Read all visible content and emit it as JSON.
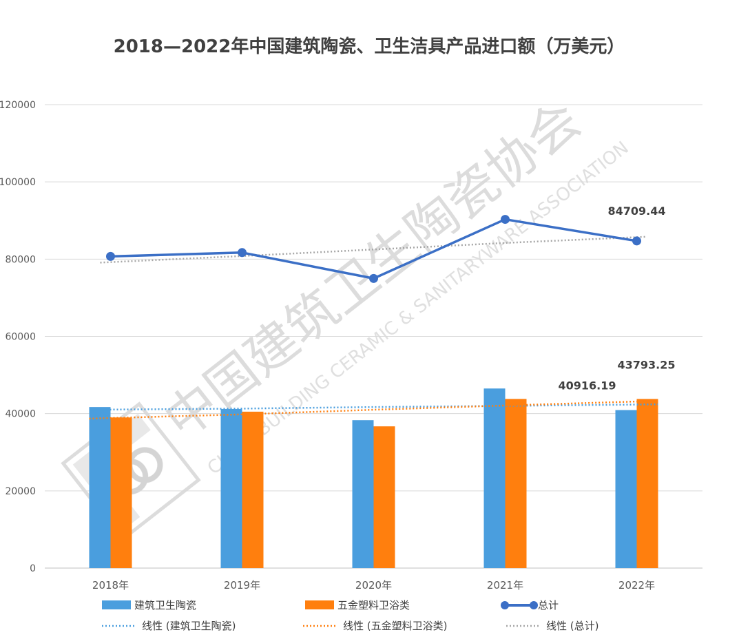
{
  "chart_data": {
    "type": "bar",
    "title": "2018—2022年中国建筑陶瓷、卫生洁具产品进口额（万美元）",
    "categories": [
      "2018年",
      "2019年",
      "2020年",
      "2021年",
      "2022年"
    ],
    "ylim": [
      0,
      120000
    ],
    "yticks": [
      "0",
      "20000",
      "40000",
      "60000",
      "80000",
      "100000",
      "120000"
    ],
    "grid": true,
    "legend_position": "bottom",
    "series": [
      {
        "name": "建筑卫生陶瓷",
        "type": "bar",
        "color": "#4a9ede",
        "values": [
          41700,
          41200,
          38300,
          46500,
          40916.19
        ]
      },
      {
        "name": "五金塑料卫浴类",
        "type": "bar",
        "color": "#ff7f0e",
        "values": [
          39000,
          40500,
          36700,
          43800,
          43793.25
        ]
      },
      {
        "name": "总计",
        "type": "line",
        "color": "#3b6fc6",
        "values": [
          80700,
          81700,
          75000,
          90300,
          84709.44
        ]
      }
    ],
    "trendlines": [
      {
        "name": "线性 (建筑卫生陶瓷)",
        "color": "#4a9ede",
        "values": [
          41000,
          41300,
          41700,
          42000,
          42400
        ]
      },
      {
        "name": "线性 (五金塑料卫浴类)",
        "color": "#ff7f0e",
        "values": [
          38700,
          39800,
          41000,
          42100,
          43300
        ]
      },
      {
        "name": "线性 (总计)",
        "color": "#a6a6a6",
        "values": [
          79100,
          80800,
          82500,
          84200,
          85800
        ]
      }
    ],
    "data_labels": [
      {
        "series": "总计",
        "index": 4,
        "text": "84709.44"
      },
      {
        "series": "建筑卫生陶瓷",
        "index": 4,
        "text": "40916.19"
      },
      {
        "series": "五金塑料卫浴类",
        "index": 4,
        "text": "43793.25"
      }
    ]
  },
  "watermark": {
    "chinese": "中国建筑卫生陶瓷协会",
    "english": "CHINA BUILDING CERAMIC & SANITARYWARE ASSOCIATION",
    "logo": "association-logo"
  }
}
